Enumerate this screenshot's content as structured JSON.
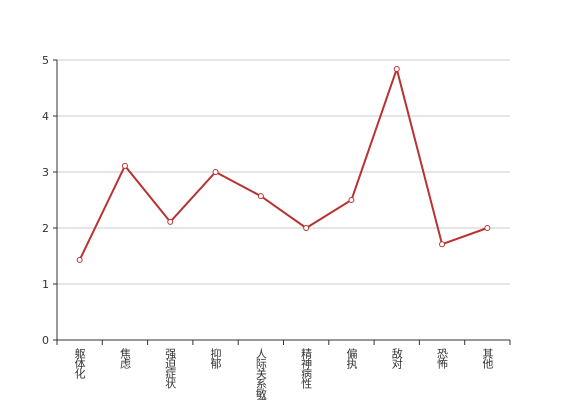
{
  "chart_data": {
    "type": "line",
    "categories": [
      "躯体化",
      "焦虑",
      "强迫症状",
      "抑郁",
      "人际关系敏感",
      "精神病性",
      "偏执",
      "敌对",
      "恐怖",
      "其他"
    ],
    "series": [
      {
        "name": "",
        "color": "#b83232",
        "values": [
          1.43,
          3.11,
          2.11,
          3.0,
          2.57,
          2.0,
          2.5,
          4.84,
          1.71,
          2.0
        ]
      }
    ],
    "ylim": [
      0,
      5
    ],
    "yticks": [
      0,
      1,
      2,
      3,
      4,
      5
    ],
    "grid": true
  }
}
